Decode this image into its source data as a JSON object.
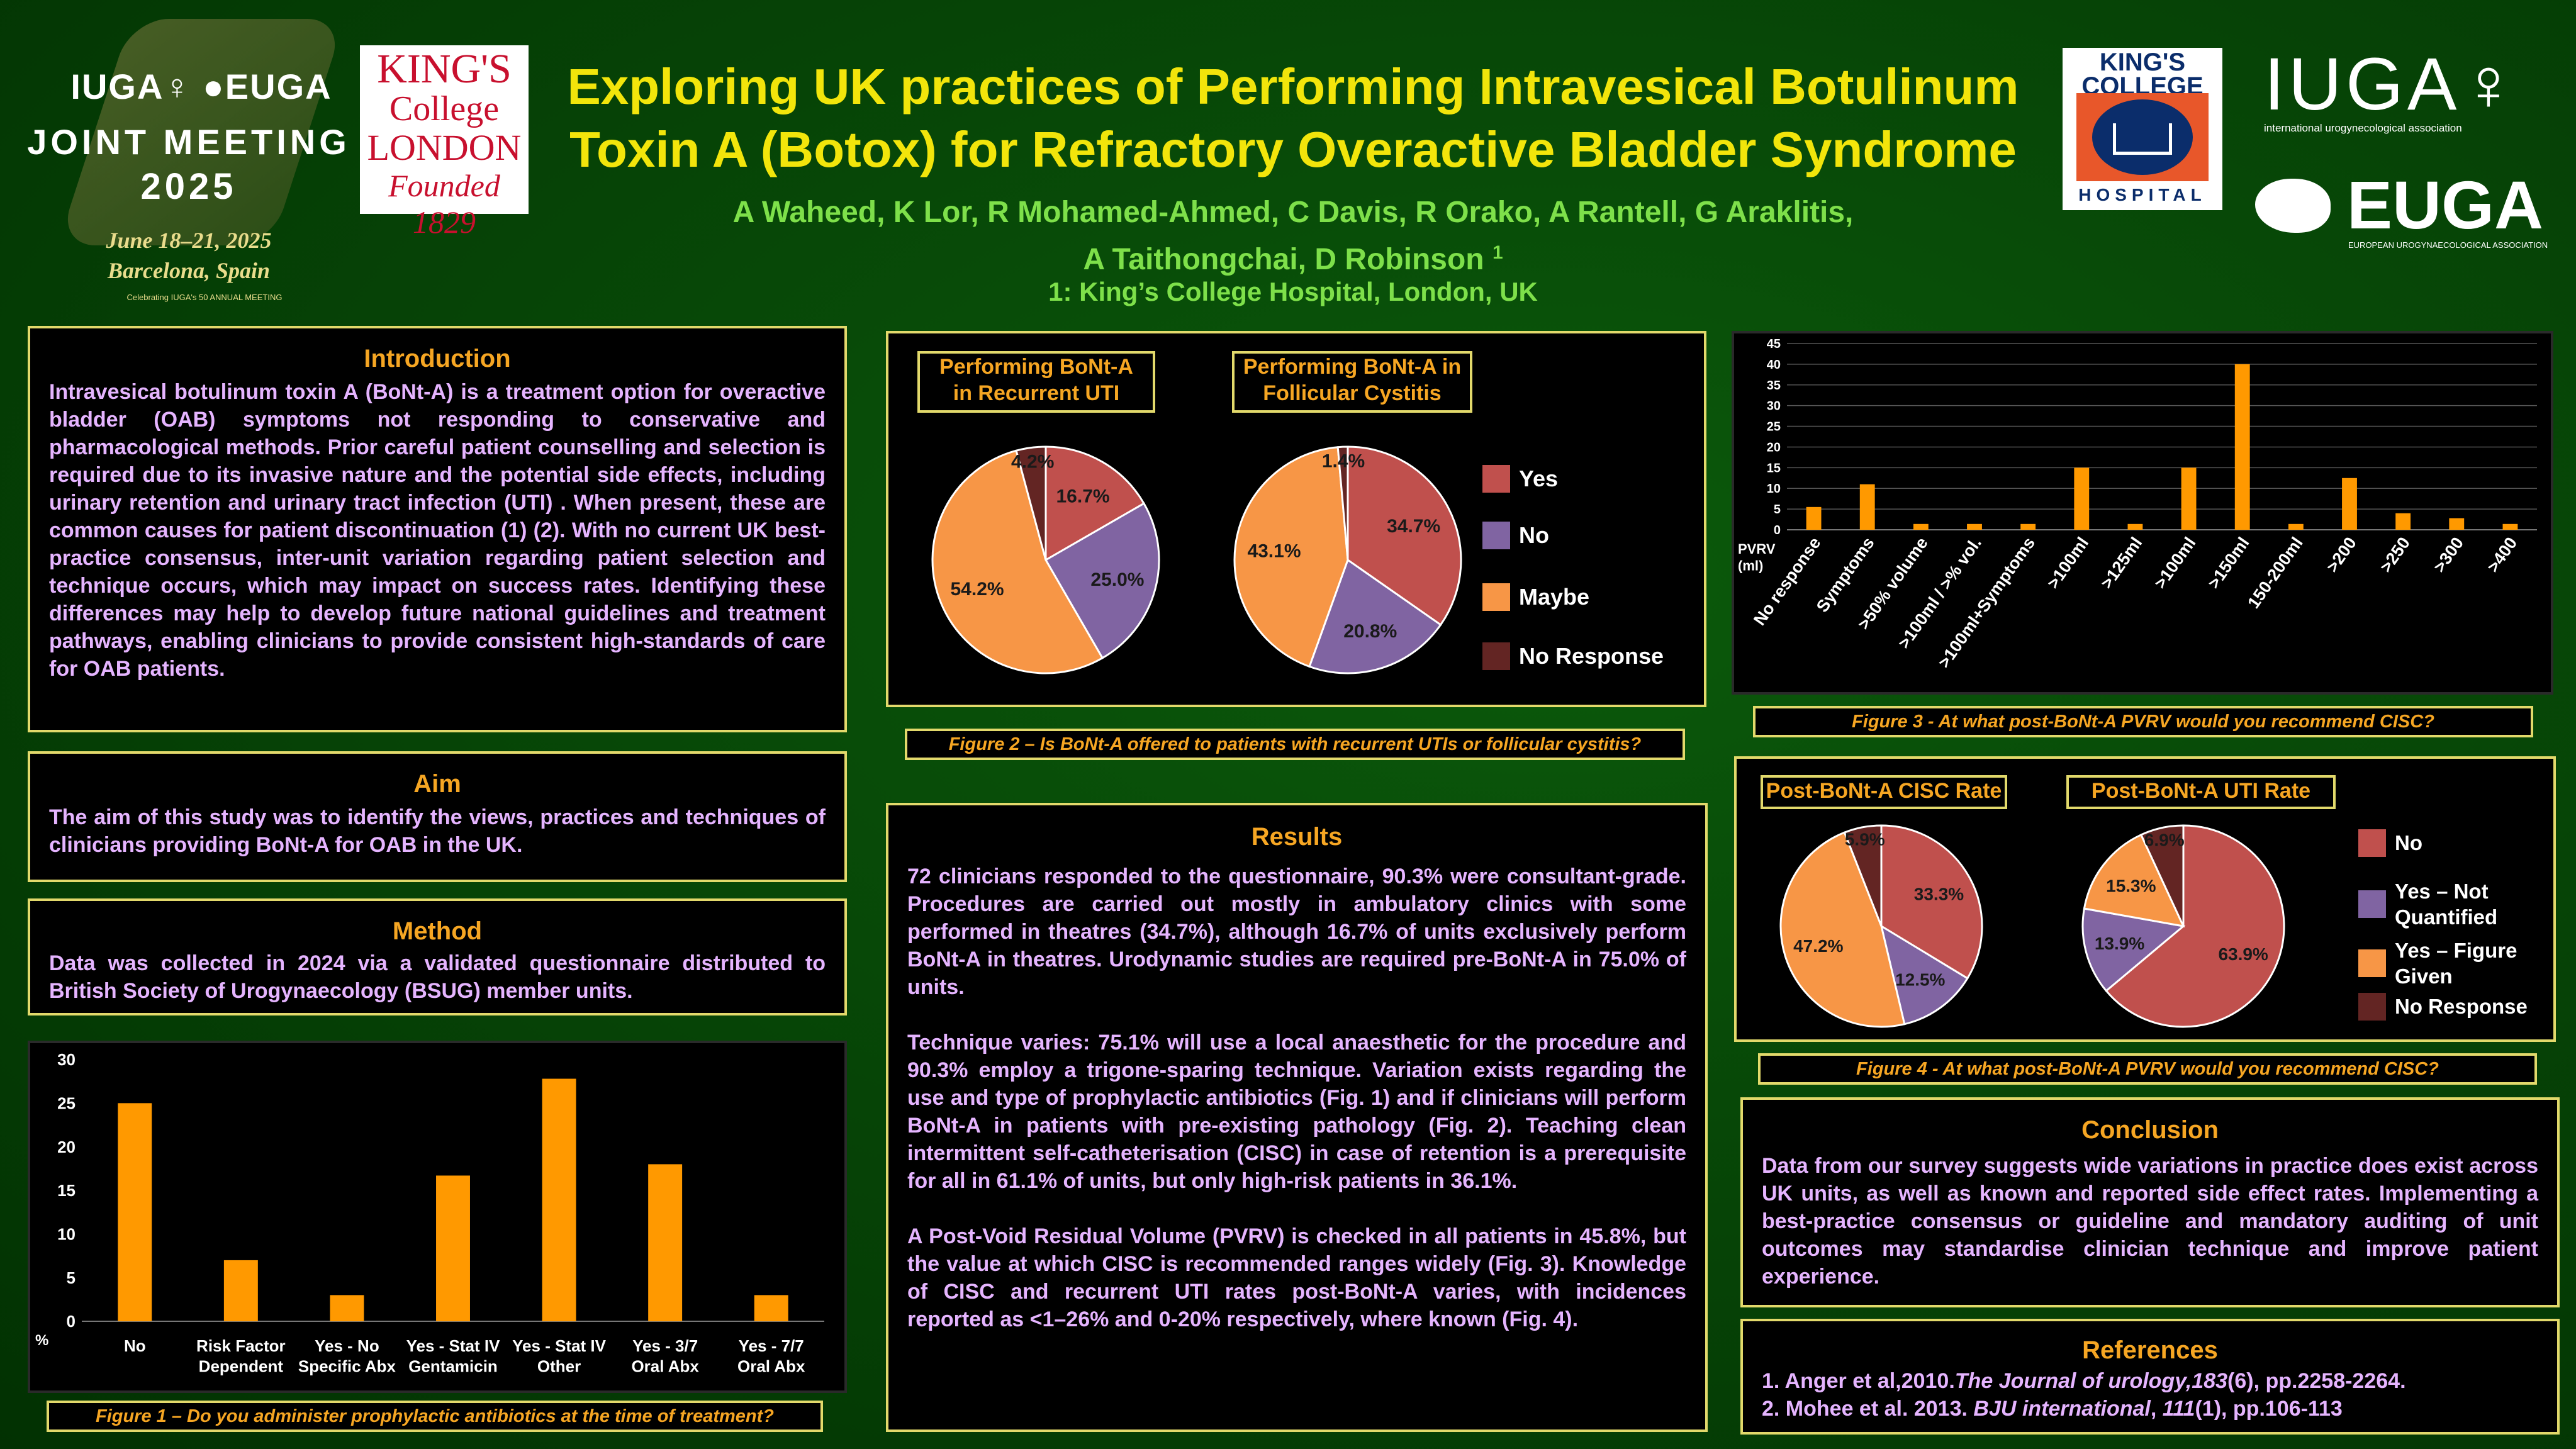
{
  "header": {
    "conference_line1": "IUGA♀ ●EUGA",
    "conference_line2": "JOINT MEETING",
    "conference_year": "2025",
    "conference_dates": "June 18–21, 2025",
    "conference_place": "Barcelona, Spain",
    "conference_small": "Celebrating IUGA's 50 ANNUAL MEETING",
    "kcl_logo_lines": [
      "KING'S",
      "College",
      "LONDON",
      "Founded 1829"
    ],
    "title_line1": "Exploring UK practices of Performing Intravesical Botulinum",
    "title_line2": "Toxin A (Botox) for Refractory Overactive Bladder Syndrome",
    "authors_line1": "A Waheed, K Lor, R Mohamed-Ahmed, C Davis, R Orako, A Rantell, G Araklitis,",
    "authors_line2": "A Taithongchai, D Robinson",
    "authors_sup": "1",
    "affiliation": "1: King’s College Hospital, London, UK",
    "kch_logo_top": "KING'S COLLEGE",
    "kch_logo_bottom": "HOSPITAL",
    "iuga_logo": "IUGA♀",
    "iuga_logo_sub": "international urogynecological association",
    "euga_logo": "EUGA",
    "euga_logo_sub": "EUROPEAN UROGYNAECOLOGICAL ASSOCIATION"
  },
  "introduction": {
    "heading": "Introduction",
    "text": "Intravesical botulinum toxin A (BoNt-A) is a treatment option for overactive bladder (OAB) symptoms not responding to conservative and pharmacological methods. Prior careful patient counselling and selection is required due to its invasive nature and the potential side effects, including urinary retention and urinary tract infection (UTI) . When present, these are common causes for patient discontinuation (1) (2). With no current UK best-practice consensus, inter-unit variation regarding  patient selection and technique occurs, which may impact on success rates. Identifying these differences may help to develop future national guidelines and treatment  pathways, enabling clinicians to provide consistent high-standards of care for OAB patients."
  },
  "aim": {
    "heading": "Aim",
    "text": "The aim of this study was to identify the views, practices and techniques of clinicians providing BoNt-A for OAB in the UK."
  },
  "method": {
    "heading": "Method",
    "text": "Data was collected in 2024 via a validated questionnaire distributed to British Society of Urogynaecology (BSUG) member units."
  },
  "results": {
    "heading": "Results",
    "p1": "72 clinicians responded to the questionnaire, 90.3% were consultant-grade. Procedures are carried out mostly in ambulatory clinics with some performed in theatres (34.7%), although 16.7% of units exclusively perform BoNt-A in theatres. Urodynamic studies are required pre-BoNt-A in 75.0% of units.",
    "p2": "Technique varies: 75.1% will use a local anaesthetic for the procedure and 90.3% employ a trigone-sparing technique. Variation exists regarding the use and type of prophylactic antibiotics (Fig. 1) and if clinicians will perform BoNt-A in patients with pre-existing pathology (Fig. 2). Teaching clean intermittent self-catheterisation (CISC) in case of retention is a prerequisite for all in 61.1% of units, but only high-risk patients in 36.1%.",
    "p3": "A Post-Void Residual Volume (PVRV) is checked in all patients in 45.8%, but the value at which CISC is recommended ranges widely (Fig. 3). Knowledge of CISC and recurrent UTI rates post-BoNt-A varies, with incidences reported as <1–26% and 0-20% respectively, where known (Fig. 4)."
  },
  "conclusion": {
    "heading": "Conclusion",
    "text": "Data from our survey suggests wide variations in practice does exist across UK units, as well as known and reported side effect rates. Implementing a best-practice consensus or guideline and mandatory auditing of unit outcomes may standardise clinician technique and improve patient experience."
  },
  "references": {
    "heading": "References",
    "ref1_pre": "1. Anger et al,2010.",
    "ref1_journal": "The Journal of urology",
    "ref1_vol": ",183",
    "ref1_post": "(6), pp.2258-2264.",
    "ref2_pre": "2. Mohee et al. 2013. ",
    "ref2_journal": "BJU international",
    "ref2_mid": ", ",
    "ref2_vol": "111",
    "ref2_post": "(1), pp.106-113"
  },
  "captions": {
    "fig1": "Figure 1 – Do you administer prophylactic antibiotics at the time of treatment?",
    "fig2": "Figure 2 – Is BoNt-A offered to patients with recurrent UTIs or follicular cystitis?",
    "fig3": "Figure 3 - At what post-BoNt-A PVRV would you recommend CISC?",
    "fig4": "Figure 4 - At what post-BoNt-A PVRV would you recommend CISC?"
  },
  "colors": {
    "background": "#064306",
    "box_border": "#e2d96b",
    "heading": "#f6a623",
    "body_text": "#e5b4ff",
    "title": "#f2e50b",
    "authors": "#7ee04a",
    "bar": "#ff9900",
    "pie_yes": "#c0504d",
    "pie_no": "#8064a2",
    "pie_maybe": "#f79646",
    "pie_noresponse": "#632523"
  },
  "chart_data": [
    {
      "id": "fig1",
      "type": "bar",
      "categories": [
        "No",
        "Risk Factor Dependent",
        "Yes - No Specific Abx",
        "Yes - Stat IV Gentamicin",
        "Yes - Stat IV Other",
        "Yes - 3/7 Oral Abx",
        "Yes - 7/7 Oral Abx"
      ],
      "category_lines": [
        [
          "No"
        ],
        [
          "Risk Factor",
          "Dependent"
        ],
        [
          "Yes - No",
          "Specific Abx"
        ],
        [
          "Yes - Stat IV",
          "Gentamicin"
        ],
        [
          "Yes - Stat IV",
          "Other"
        ],
        [
          "Yes - 3/7",
          "Oral Abx"
        ],
        [
          "Yes - 7/7",
          "Oral Abx"
        ]
      ],
      "values": [
        25,
        7,
        3,
        16.7,
        27.8,
        18,
        3
      ],
      "ylim": [
        0,
        30
      ],
      "yticks": [
        0,
        5,
        10,
        15,
        20,
        25,
        30
      ],
      "ylabel": "%",
      "grid": false
    },
    {
      "id": "fig2a",
      "type": "pie",
      "title": "Performing BoNt-A in Recurrent UTI",
      "title_lines": [
        "Performing BoNt-A",
        "in Recurrent UTI"
      ],
      "labels": [
        "Yes",
        "No",
        "Maybe",
        "No Response"
      ],
      "values": [
        16.7,
        25.0,
        54.2,
        4.2
      ],
      "value_labels": [
        "16.7%",
        "25.0%",
        "54.2%",
        "4.2%"
      ]
    },
    {
      "id": "fig2b",
      "type": "pie",
      "title": "Performing BoNt-A in Follicular Cystitis",
      "title_lines": [
        "Performing BoNt-A in",
        "Follicular Cystitis"
      ],
      "labels": [
        "Yes",
        "No",
        "Maybe",
        "No Response"
      ],
      "values": [
        34.7,
        20.8,
        43.1,
        1.4
      ],
      "value_labels": [
        "34.7%",
        "20.8%",
        "43.1%",
        "1.4%"
      ],
      "legend": [
        "Yes",
        "No",
        "Maybe",
        "No Response"
      ]
    },
    {
      "id": "fig3",
      "type": "bar",
      "categories": [
        "No response",
        "Symptoms",
        ">50% volume",
        ">100ml / >% vol.",
        ">100ml+Symptoms",
        ">100ml",
        ">125ml",
        ">100ml",
        ">150ml",
        "150-200ml",
        ">200",
        ">250",
        ">300",
        ">400"
      ],
      "values": [
        5.5,
        11,
        1.4,
        1.4,
        1.4,
        15,
        1.4,
        15,
        40,
        1.4,
        12.5,
        4,
        2.8,
        1.4
      ],
      "ylim": [
        0,
        45
      ],
      "yticks": [
        0,
        5,
        10,
        15,
        20,
        25,
        30,
        35,
        40,
        45
      ],
      "ylabel": "PVRV (ml)",
      "grid": true
    },
    {
      "id": "fig4a",
      "type": "pie",
      "title": "Post-BoNt-A CISC Rate",
      "labels": [
        "No",
        "Yes – Not Quantified",
        "Yes – Figure Given",
        "No Response"
      ],
      "values": [
        33.3,
        12.5,
        47.2,
        5.9
      ],
      "value_labels": [
        "33.3%",
        "12.5%",
        "47.2%",
        "5.9%"
      ]
    },
    {
      "id": "fig4b",
      "type": "pie",
      "title": "Post-BoNt-A UTI Rate",
      "labels": [
        "No",
        "Yes – Not Quantified",
        "Yes – Figure Given",
        "No Response"
      ],
      "values": [
        63.9,
        13.9,
        15.3,
        6.9
      ],
      "value_labels": [
        "63.9%",
        "13.9%",
        "15.3%",
        "6.9%"
      ],
      "legend": [
        "No",
        "Yes – Not Quantified",
        "Yes – Figure Given",
        "No Response"
      ]
    }
  ]
}
